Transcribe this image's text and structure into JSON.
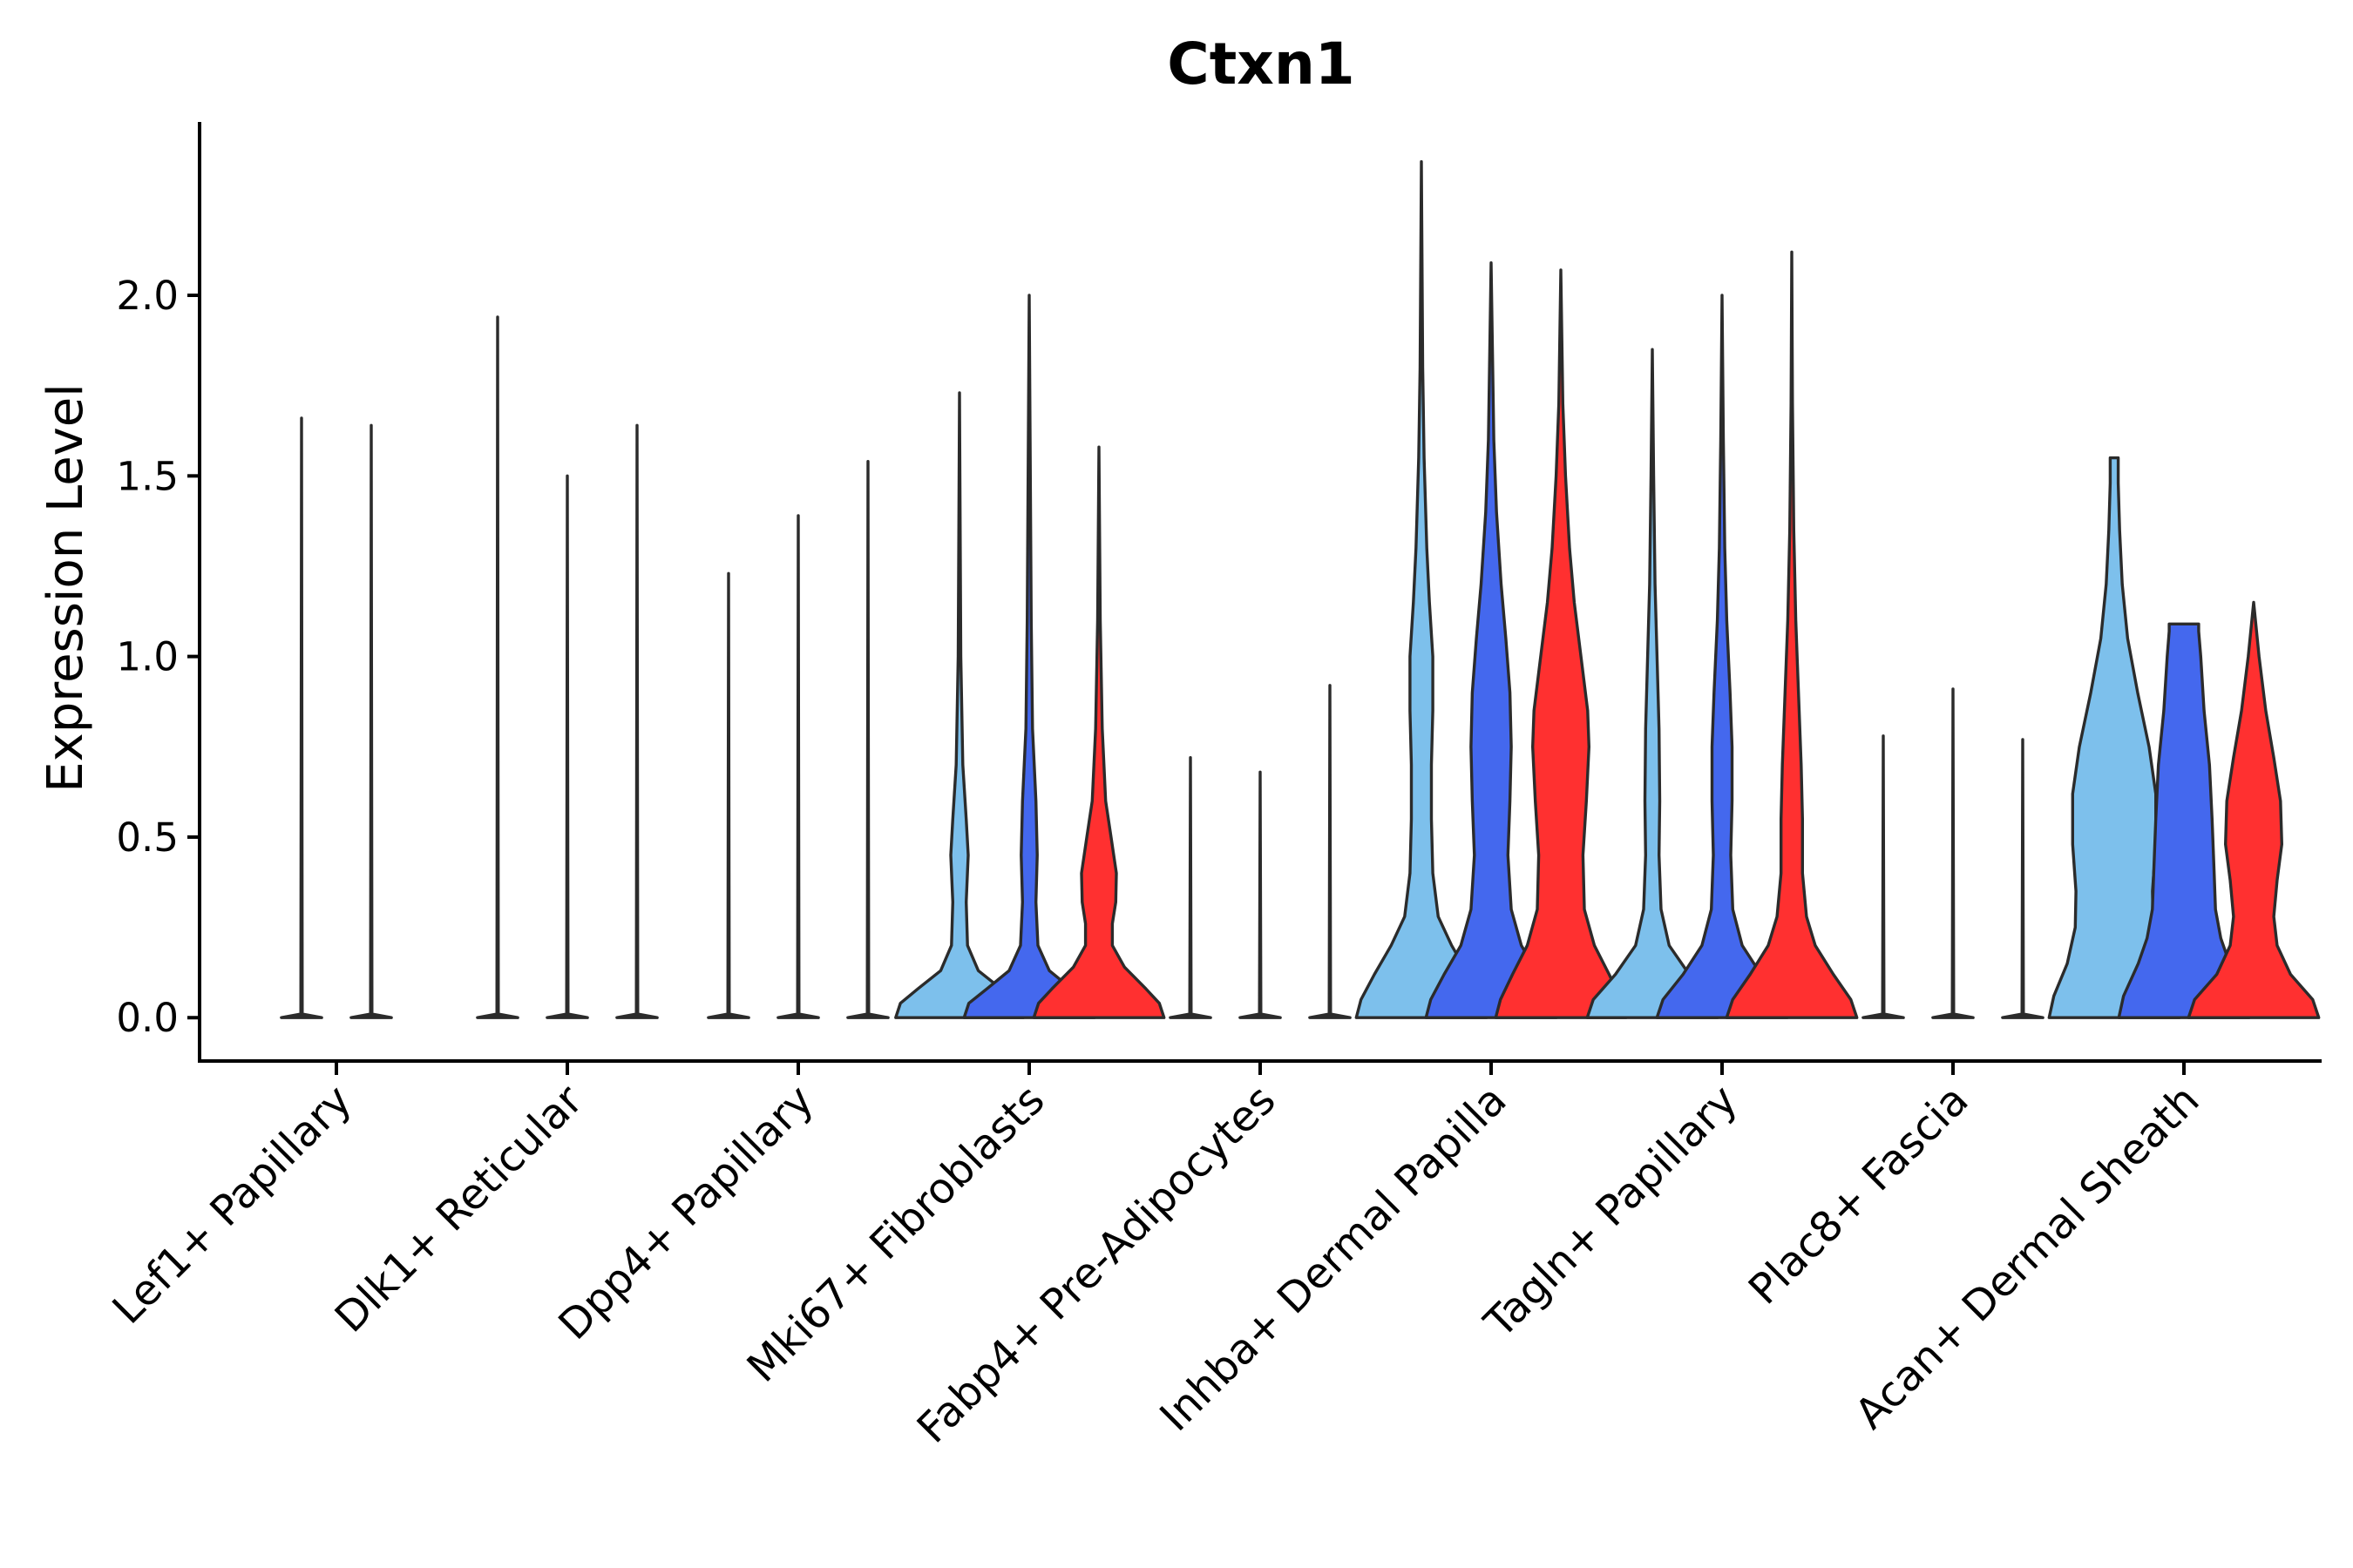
{
  "chart_data": {
    "type": "violin",
    "title": "Ctxn1",
    "xlabel": "",
    "ylabel": "Expression Level",
    "ylim": [
      -0.12,
      2.48
    ],
    "yticks": [
      "0.0",
      "0.5",
      "1.0",
      "1.5",
      "2.0"
    ],
    "legend": "none",
    "series_colors": [
      "#7DC0EC",
      "#4468EE",
      "#FF3030"
    ],
    "categories": [
      {
        "label": "Lef1+ Papillary",
        "violins": [
          {
            "color": "",
            "max": 1.66,
            "profile": [
              [
                0,
                0.3
              ],
              [
                0.01,
                0.01
              ],
              [
                1.66,
                0
              ]
            ]
          },
          {
            "color": "",
            "max": 1.64,
            "profile": [
              [
                0,
                0.3
              ],
              [
                0.01,
                0.01
              ],
              [
                1.64,
                0
              ]
            ]
          }
        ]
      },
      {
        "label": "Dlk1+ Reticular",
        "violins": [
          {
            "color": "",
            "max": 1.94,
            "profile": [
              [
                0,
                0.3
              ],
              [
                0.01,
                0.01
              ],
              [
                1.94,
                0
              ]
            ]
          },
          {
            "color": "",
            "max": 1.5,
            "profile": [
              [
                0,
                0.3
              ],
              [
                0.01,
                0.01
              ],
              [
                1.5,
                0
              ]
            ]
          },
          {
            "color": "",
            "max": 1.64,
            "profile": [
              [
                0,
                0.3
              ],
              [
                0.01,
                0.01
              ],
              [
                1.64,
                0
              ]
            ]
          }
        ]
      },
      {
        "label": "Dpp4+ Papillary",
        "violins": [
          {
            "color": "",
            "max": 1.23,
            "profile": [
              [
                0,
                0.3
              ],
              [
                0.01,
                0.01
              ],
              [
                1.23,
                0
              ]
            ]
          },
          {
            "color": "",
            "max": 1.39,
            "profile": [
              [
                0,
                0.3
              ],
              [
                0.01,
                0.01
              ],
              [
                1.39,
                0
              ]
            ]
          },
          {
            "color": "",
            "max": 1.54,
            "profile": [
              [
                0,
                0.3
              ],
              [
                0.01,
                0.01
              ],
              [
                1.54,
                0
              ]
            ]
          }
        ]
      },
      {
        "label": "Mki67+ Fibroblasts",
        "violins": [
          {
            "color": "#7DC0EC",
            "max": 1.73,
            "profile": [
              [
                0,
                0.95
              ],
              [
                0.04,
                0.88
              ],
              [
                0.08,
                0.62
              ],
              [
                0.13,
                0.28
              ],
              [
                0.2,
                0.12
              ],
              [
                0.32,
                0.1
              ],
              [
                0.45,
                0.13
              ],
              [
                0.55,
                0.1
              ],
              [
                0.7,
                0.05
              ],
              [
                1.0,
                0.02
              ],
              [
                1.73,
                0
              ]
            ]
          },
          {
            "color": "#4468EE",
            "max": 2.0,
            "profile": [
              [
                0,
                0.97
              ],
              [
                0.04,
                0.9
              ],
              [
                0.08,
                0.63
              ],
              [
                0.13,
                0.3
              ],
              [
                0.2,
                0.13
              ],
              [
                0.32,
                0.1
              ],
              [
                0.45,
                0.12
              ],
              [
                0.6,
                0.1
              ],
              [
                0.8,
                0.05
              ],
              [
                1.1,
                0.03
              ],
              [
                2.0,
                0
              ]
            ]
          },
          {
            "color": "#FF3030",
            "max": 1.58,
            "profile": [
              [
                0,
                0.97
              ],
              [
                0.04,
                0.9
              ],
              [
                0.08,
                0.7
              ],
              [
                0.14,
                0.38
              ],
              [
                0.2,
                0.2
              ],
              [
                0.26,
                0.2
              ],
              [
                0.32,
                0.25
              ],
              [
                0.4,
                0.26
              ],
              [
                0.5,
                0.18
              ],
              [
                0.6,
                0.1
              ],
              [
                0.8,
                0.05
              ],
              [
                1.1,
                0.02
              ],
              [
                1.58,
                0
              ]
            ]
          }
        ]
      },
      {
        "label": "Fabp4+ Pre-Adipocytes",
        "violins": [
          {
            "color": "",
            "max": 0.72,
            "profile": [
              [
                0,
                0.3
              ],
              [
                0.01,
                0.01
              ],
              [
                0.72,
                0
              ]
            ]
          },
          {
            "color": "",
            "max": 0.68,
            "profile": [
              [
                0,
                0.3
              ],
              [
                0.01,
                0.01
              ],
              [
                0.68,
                0
              ]
            ]
          },
          {
            "color": "",
            "max": 0.92,
            "profile": [
              [
                0,
                0.3
              ],
              [
                0.01,
                0.01
              ],
              [
                0.92,
                0
              ]
            ]
          }
        ]
      },
      {
        "label": "Inhba+ Dermal Papilla",
        "violins": [
          {
            "color": "#7DC0EC",
            "max": 2.37,
            "profile": [
              [
                0,
                0.97
              ],
              [
                0.05,
                0.9
              ],
              [
                0.12,
                0.7
              ],
              [
                0.2,
                0.45
              ],
              [
                0.28,
                0.25
              ],
              [
                0.4,
                0.17
              ],
              [
                0.55,
                0.15
              ],
              [
                0.7,
                0.15
              ],
              [
                0.85,
                0.17
              ],
              [
                1.0,
                0.17
              ],
              [
                1.15,
                0.12
              ],
              [
                1.3,
                0.08
              ],
              [
                1.55,
                0.04
              ],
              [
                1.8,
                0.02
              ],
              [
                2.37,
                0
              ]
            ]
          },
          {
            "color": "#4468EE",
            "max": 2.09,
            "profile": [
              [
                0,
                0.97
              ],
              [
                0.05,
                0.9
              ],
              [
                0.12,
                0.7
              ],
              [
                0.2,
                0.45
              ],
              [
                0.3,
                0.3
              ],
              [
                0.45,
                0.25
              ],
              [
                0.6,
                0.28
              ],
              [
                0.75,
                0.3
              ],
              [
                0.9,
                0.28
              ],
              [
                1.05,
                0.22
              ],
              [
                1.2,
                0.15
              ],
              [
                1.4,
                0.08
              ],
              [
                1.6,
                0.04
              ],
              [
                2.09,
                0
              ]
            ]
          },
          {
            "color": "#FF3030",
            "max": 2.07,
            "profile": [
              [
                0,
                0.97
              ],
              [
                0.05,
                0.9
              ],
              [
                0.12,
                0.72
              ],
              [
                0.2,
                0.5
              ],
              [
                0.3,
                0.35
              ],
              [
                0.45,
                0.33
              ],
              [
                0.6,
                0.38
              ],
              [
                0.75,
                0.42
              ],
              [
                0.85,
                0.4
              ],
              [
                1.0,
                0.3
              ],
              [
                1.15,
                0.2
              ],
              [
                1.3,
                0.13
              ],
              [
                1.5,
                0.07
              ],
              [
                1.7,
                0.03
              ],
              [
                2.07,
                0
              ]
            ]
          }
        ]
      },
      {
        "label": "Tagln+ Papillary",
        "violins": [
          {
            "color": "#7DC0EC",
            "max": 1.85,
            "profile": [
              [
                0,
                0.97
              ],
              [
                0.05,
                0.88
              ],
              [
                0.12,
                0.55
              ],
              [
                0.2,
                0.25
              ],
              [
                0.3,
                0.13
              ],
              [
                0.45,
                0.1
              ],
              [
                0.6,
                0.11
              ],
              [
                0.8,
                0.1
              ],
              [
                1.0,
                0.07
              ],
              [
                1.2,
                0.04
              ],
              [
                1.5,
                0.02
              ],
              [
                1.85,
                0
              ]
            ]
          },
          {
            "color": "#4468EE",
            "max": 2.0,
            "profile": [
              [
                0,
                0.97
              ],
              [
                0.05,
                0.88
              ],
              [
                0.12,
                0.58
              ],
              [
                0.2,
                0.3
              ],
              [
                0.3,
                0.16
              ],
              [
                0.45,
                0.13
              ],
              [
                0.6,
                0.15
              ],
              [
                0.75,
                0.15
              ],
              [
                0.9,
                0.12
              ],
              [
                1.1,
                0.07
              ],
              [
                1.3,
                0.04
              ],
              [
                1.6,
                0.02
              ],
              [
                2.0,
                0
              ]
            ]
          },
          {
            "color": "#FF3030",
            "max": 2.12,
            "profile": [
              [
                0,
                0.97
              ],
              [
                0.05,
                0.88
              ],
              [
                0.12,
                0.62
              ],
              [
                0.2,
                0.35
              ],
              [
                0.28,
                0.22
              ],
              [
                0.4,
                0.16
              ],
              [
                0.55,
                0.16
              ],
              [
                0.7,
                0.14
              ],
              [
                0.9,
                0.1
              ],
              [
                1.1,
                0.06
              ],
              [
                1.35,
                0.03
              ],
              [
                1.7,
                0.01
              ],
              [
                2.12,
                0
              ]
            ]
          }
        ]
      },
      {
        "label": "Plac8+ Fascia",
        "violins": [
          {
            "color": "",
            "max": 0.78,
            "profile": [
              [
                0,
                0.3
              ],
              [
                0.01,
                0.01
              ],
              [
                0.78,
                0
              ]
            ]
          },
          {
            "color": "",
            "max": 0.91,
            "profile": [
              [
                0,
                0.3
              ],
              [
                0.01,
                0.01
              ],
              [
                0.91,
                0
              ]
            ]
          },
          {
            "color": "",
            "max": 0.77,
            "profile": [
              [
                0,
                0.3
              ],
              [
                0.01,
                0.01
              ],
              [
                0.77,
                0
              ]
            ]
          }
        ]
      },
      {
        "label": "Acan+ Dermal Sheath",
        "violins": [
          {
            "color": "#7DC0EC",
            "max": 1.55,
            "profile": [
              [
                0,
                0.97
              ],
              [
                0.06,
                0.9
              ],
              [
                0.15,
                0.7
              ],
              [
                0.25,
                0.58
              ],
              [
                0.35,
                0.57
              ],
              [
                0.48,
                0.62
              ],
              [
                0.62,
                0.62
              ],
              [
                0.75,
                0.52
              ],
              [
                0.9,
                0.35
              ],
              [
                1.05,
                0.2
              ],
              [
                1.2,
                0.12
              ],
              [
                1.35,
                0.08
              ],
              [
                1.48,
                0.06
              ],
              [
                1.55,
                0.06
              ]
            ]
          },
          {
            "color": "#4468EE",
            "max": 1.09,
            "profile": [
              [
                0,
                0.97
              ],
              [
                0.06,
                0.9
              ],
              [
                0.15,
                0.68
              ],
              [
                0.22,
                0.55
              ],
              [
                0.3,
                0.47
              ],
              [
                0.4,
                0.45
              ],
              [
                0.55,
                0.42
              ],
              [
                0.7,
                0.38
              ],
              [
                0.85,
                0.3
              ],
              [
                1.0,
                0.25
              ],
              [
                1.07,
                0.22
              ],
              [
                1.09,
                0.22
              ]
            ]
          },
          {
            "color": "#FF3030",
            "max": 1.15,
            "profile": [
              [
                0,
                0.97
              ],
              [
                0.05,
                0.88
              ],
              [
                0.12,
                0.55
              ],
              [
                0.2,
                0.35
              ],
              [
                0.28,
                0.3
              ],
              [
                0.38,
                0.35
              ],
              [
                0.48,
                0.42
              ],
              [
                0.6,
                0.4
              ],
              [
                0.72,
                0.3
              ],
              [
                0.85,
                0.18
              ],
              [
                1.0,
                0.08
              ],
              [
                1.15,
                0
              ]
            ]
          }
        ]
      }
    ]
  }
}
